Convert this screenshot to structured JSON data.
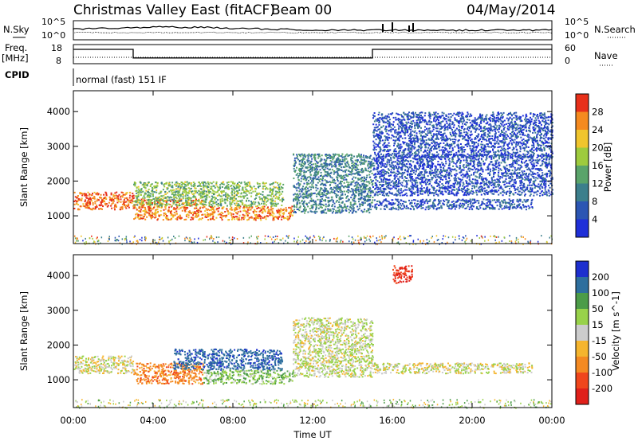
{
  "header": {
    "title": "Christmas Valley East (fitACF)",
    "beam": "Beam 00",
    "date": "04/May/2014"
  },
  "strips": {
    "nsky_label": "N.Sky",
    "nsearch_label": "N.Search",
    "count_ticks": [
      "10^5",
      "10^0"
    ],
    "freq_label_1": "Freq.",
    "freq_label_2": "[MHz]",
    "freq_ticks": [
      "18",
      "8"
    ],
    "nave_label": "Nave",
    "nave_ticks": [
      "60",
      "0"
    ],
    "cpid_label": "CPID",
    "cpid_value": "normal (fast) 151 IF"
  },
  "power_panel": {
    "ylabel": "Slant Range [km]",
    "yticks": [
      "4000",
      "3000",
      "2000",
      "1000"
    ],
    "colorbar_label": "Power [dB]",
    "colorbar_ticks": [
      "28",
      "24",
      "20",
      "16",
      "12",
      "8",
      "4"
    ]
  },
  "velocity_panel": {
    "ylabel": "Slant Range [km]",
    "yticks": [
      "4000",
      "3000",
      "2000",
      "1000"
    ],
    "colorbar_label": "Velocity [m s^-1]",
    "colorbar_ticks": [
      "200",
      "100",
      "50",
      "15",
      "-15",
      "-50",
      "-100",
      "-200"
    ]
  },
  "xaxis": {
    "label": "Time UT",
    "ticks": [
      "00:00",
      "04:00",
      "08:00",
      "12:00",
      "16:00",
      "20:00",
      "00:00"
    ]
  },
  "colors": {
    "power_scale": [
      "#1f2fd8",
      "#2c56b3",
      "#3c7f8c",
      "#5aa46a",
      "#9ecb3d",
      "#f0c52d",
      "#f58a1f",
      "#e8301a"
    ],
    "velocity_scale": [
      "#e0201a",
      "#f0461c",
      "#f48a22",
      "#f5b52e",
      "#cccccc",
      "#98d24a",
      "#4c9c48",
      "#2e6f9e",
      "#1d2fcf"
    ]
  },
  "chart_data": {
    "type": "heatmap",
    "title": "Christmas Valley East (fitACF)",
    "xlabel": "Time UT",
    "ylabel": "Slant Range [km]",
    "xlim_hours": [
      0,
      24
    ],
    "ylim_km": [
      200,
      4600
    ],
    "frequency_mhz": [
      {
        "from_hour": 0,
        "to_hour": 3.0,
        "value": 15.5
      },
      {
        "from_hour": 3.0,
        "to_hour": 15.0,
        "value": 11.0
      },
      {
        "from_hour": 15.0,
        "to_hour": 24,
        "value": 15.5
      }
    ],
    "power_regions": [
      {
        "hours": [
          0.0,
          3.0
        ],
        "range_km": [
          1200,
          1700
        ],
        "power_db": 28
      },
      {
        "hours": [
          3.0,
          6.5
        ],
        "range_km": [
          900,
          1500
        ],
        "power_db": 26
      },
      {
        "hours": [
          6.5,
          11.0
        ],
        "range_km": [
          900,
          1300
        ],
        "power_db": 26
      },
      {
        "hours": [
          3.0,
          10.5
        ],
        "range_km": [
          1300,
          2000
        ],
        "power_db": 16
      },
      {
        "hours": [
          11.0,
          15.0
        ],
        "range_km": [
          1100,
          2800
        ],
        "power_db": 10
      },
      {
        "hours": [
          15.0,
          23.0
        ],
        "range_km": [
          1200,
          1500
        ],
        "power_db": 6
      },
      {
        "hours": [
          15.0,
          24.0
        ],
        "range_km": [
          1600,
          2800
        ],
        "power_db": 5
      },
      {
        "hours": [
          15.0,
          24.0
        ],
        "range_km": [
          2700,
          4000
        ],
        "power_db": 5
      }
    ],
    "velocity_regions": [
      {
        "hours": [
          0.0,
          3.0
        ],
        "range_km": [
          1200,
          1700
        ],
        "velocity_ms": 0
      },
      {
        "hours": [
          3.0,
          6.5
        ],
        "range_km": [
          900,
          1500
        ],
        "velocity_ms": -80
      },
      {
        "hours": [
          5.0,
          10.5
        ],
        "range_km": [
          1300,
          1900
        ],
        "velocity_ms": 180
      },
      {
        "hours": [
          6.5,
          11.0
        ],
        "range_km": [
          900,
          1300
        ],
        "velocity_ms": 40
      },
      {
        "hours": [
          11.0,
          15.0
        ],
        "range_km": [
          1100,
          2800
        ],
        "velocity_ms": 10
      },
      {
        "hours": [
          15.0,
          23.0
        ],
        "range_km": [
          1200,
          1500
        ],
        "velocity_ms": 0
      },
      {
        "hours": [
          16.0,
          17.0
        ],
        "range_km": [
          3800,
          4300
        ],
        "velocity_ms": -200
      }
    ]
  }
}
